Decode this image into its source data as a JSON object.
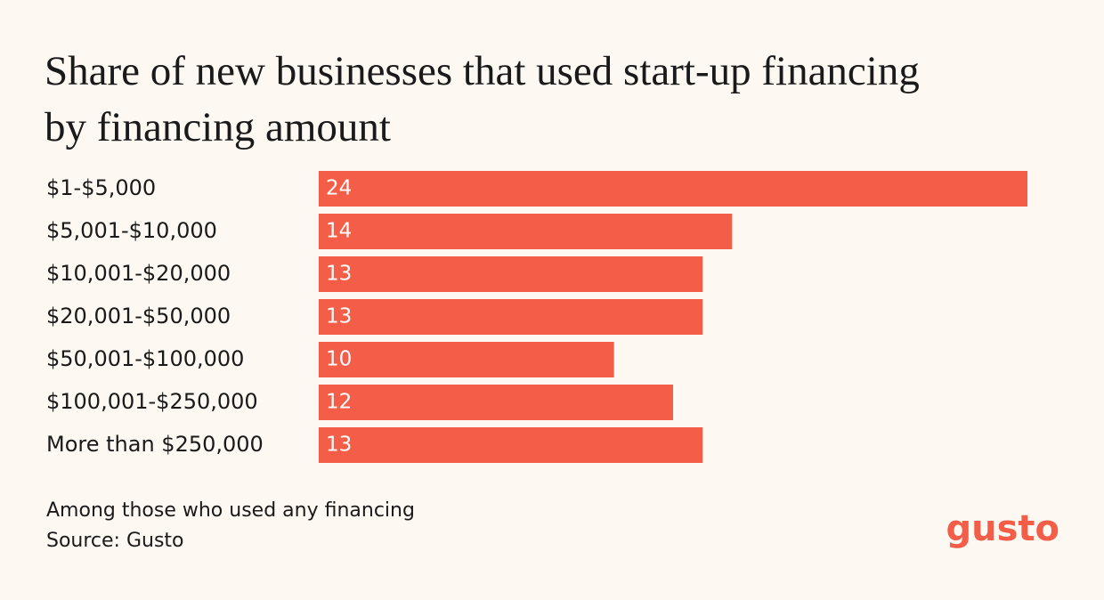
{
  "chart_data": {
    "type": "bar",
    "orientation": "horizontal",
    "title": [
      "Share of new businesses that used start-up financing",
      "by financing amount"
    ],
    "categories": [
      "$1-$5,000",
      "$5,001-$10,000",
      "$10,001-$20,000",
      "$20,001-$50,000",
      "$50,001-$100,000",
      "$100,001-$250,000",
      "More than $250,000"
    ],
    "values": [
      24,
      14,
      13,
      13,
      10,
      12,
      13
    ],
    "color": "#f45d48",
    "note": "Among those who used any financing",
    "source": "Source: Gusto",
    "logo": "gusto"
  }
}
